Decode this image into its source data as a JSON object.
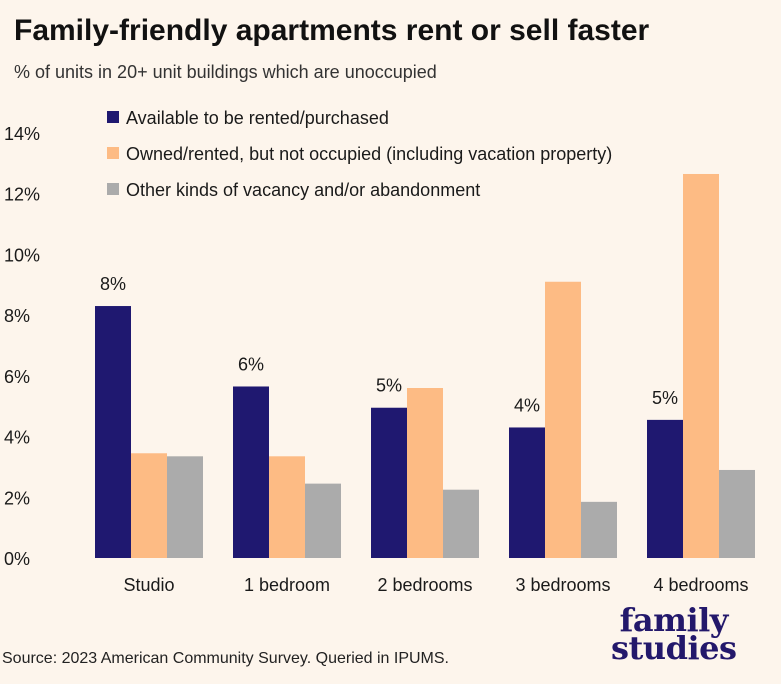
{
  "title": "Family-friendly apartments rent or sell faster",
  "subtitle": "% of units in 20+ unit buildings which are unoccupied",
  "source": "Source: 2023 American Community Survey. Queried in IPUMS.",
  "logo": {
    "line1": "family",
    "line2": "studies"
  },
  "colors": {
    "background": "#fdf5ec",
    "available": "#1f1870",
    "owned": "#fdbb84",
    "other": "#ababab"
  },
  "chart_data": {
    "type": "bar",
    "title": "Family-friendly apartments rent or sell faster",
    "subtitle": "% of units in 20+ unit buildings which are unoccupied",
    "categories": [
      "Studio",
      "1 bedroom",
      "2 bedrooms",
      "3 bedrooms",
      "4 bedrooms"
    ],
    "series": [
      {
        "name": "Available to be rented/purchased",
        "color": "#1f1870",
        "values": [
          8.3,
          5.65,
          4.95,
          4.3,
          4.55
        ],
        "labels": [
          "8%",
          "6%",
          "5%",
          "4%",
          "5%"
        ]
      },
      {
        "name": "Owned/rented, but not occupied (including vacation property)",
        "color": "#fdbb84",
        "values": [
          3.45,
          3.35,
          5.6,
          9.1,
          12.65
        ]
      },
      {
        "name": "Other kinds of vacancy and/or abandonment",
        "color": "#ababab",
        "values": [
          3.35,
          2.45,
          2.25,
          1.85,
          2.9
        ]
      }
    ],
    "yticks": [
      "0%",
      "2%",
      "4%",
      "6%",
      "8%",
      "10%",
      "12%",
      "14%"
    ],
    "ylim": [
      0,
      14
    ],
    "grid": false,
    "legend": "top-left"
  }
}
